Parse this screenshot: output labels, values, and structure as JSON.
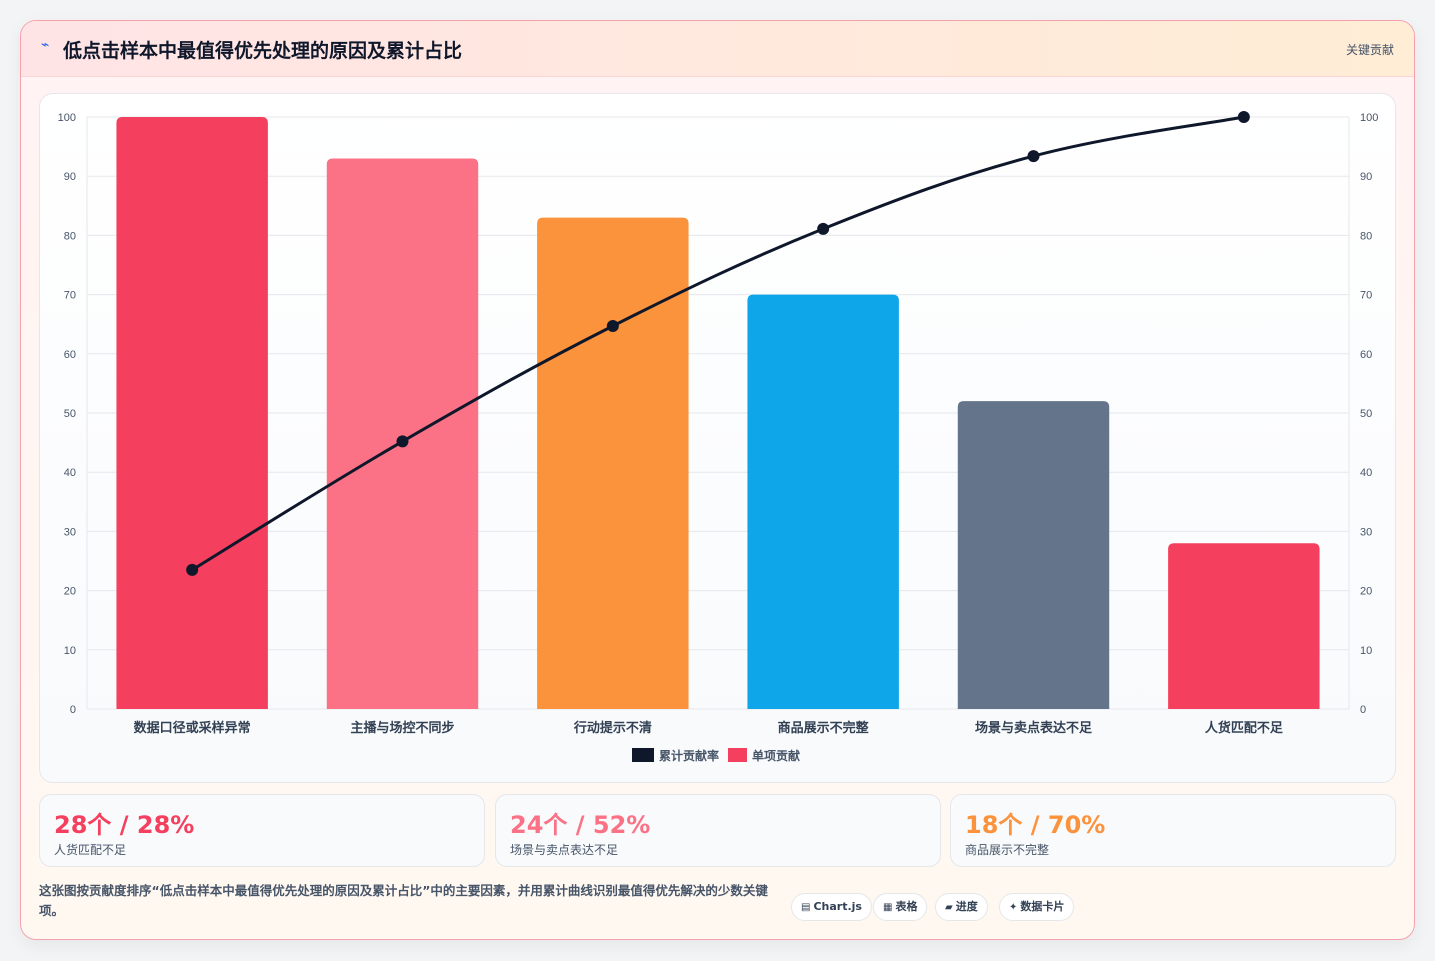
{
  "header": {
    "icon": "lightning-icon",
    "title": "低点击样本中最值得优先处理的原因及累计占比",
    "tag": "关键贡献"
  },
  "chart_data": {
    "type": "bar",
    "title": "",
    "categories": [
      "数据口径或采样异常",
      "主播与场控不同步",
      "行动提示不清",
      "商品展示不完整",
      "场景与卖点表达不足",
      "人货匹配不足"
    ],
    "series": [
      {
        "name": "单项贡献",
        "type": "bar",
        "values": [
          100,
          93,
          83,
          70,
          52,
          28
        ],
        "colors": [
          "#f43f5e",
          "#fb7185",
          "#fb923c",
          "#0ea5e9",
          "#64748b",
          "#f43f5e"
        ]
      },
      {
        "name": "累计贡献率",
        "type": "line",
        "values": [
          23.5,
          45.2,
          64.7,
          81.1,
          93.4,
          100
        ],
        "color": "#0f172a"
      }
    ],
    "ylim": [
      0,
      100
    ],
    "y2lim": [
      0,
      100
    ],
    "yticks": [
      0,
      10,
      20,
      30,
      40,
      50,
      60,
      70,
      80,
      90,
      100
    ],
    "grid": true,
    "legend": "bottom",
    "legend_order": [
      "累计贡献率",
      "单项贡献"
    ]
  },
  "stats": [
    {
      "value": "28个 / 28%",
      "label": "人货匹配不足",
      "color": "#f43f5e"
    },
    {
      "value": "24个 / 52%",
      "label": "场景与卖点表达不足",
      "color": "#fb7185"
    },
    {
      "value": "18个 / 70%",
      "label": "商品展示不完整",
      "color": "#fb923c"
    }
  ],
  "footer": {
    "description": "这张图按贡献度排序“低点击样本中最值得优先处理的原因及累计占比”中的主要因素，并用累计曲线识别最值得优先解决的少数关键项。",
    "pills": [
      {
        "icon": "chart-icon",
        "glyph": "▤",
        "label": "Chart.js"
      },
      {
        "icon": "table-icon",
        "glyph": "▦",
        "label": "表格"
      },
      {
        "icon": "progress-icon",
        "glyph": "▰",
        "label": "进度"
      },
      {
        "icon": "card-icon",
        "glyph": "✦",
        "label": "数据卡片"
      }
    ]
  }
}
